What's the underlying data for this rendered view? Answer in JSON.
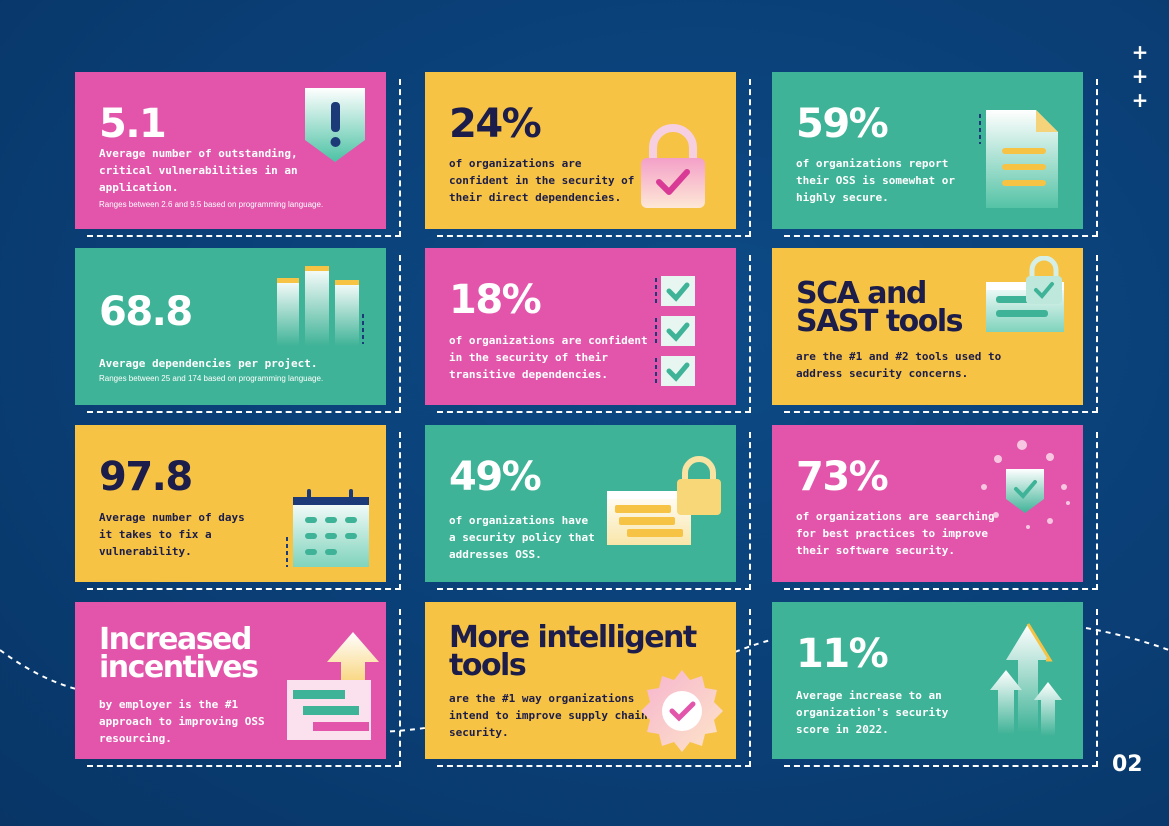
{
  "cards": [
    {
      "stat": "5.1",
      "description": "Average number of outstanding,\ncritical vulnerabilities in an\napplication.",
      "note": "Ranges between 2.6 and 9.5 based on programming language."
    },
    {
      "stat": "24%",
      "description": "of organizations are\nconfident in the security of\ntheir direct dependencies."
    },
    {
      "stat": "59%",
      "description": "of organizations report\ntheir OSS is somewhat or\nhighly secure."
    },
    {
      "stat": "68.8",
      "description": "Average dependencies per project.",
      "note": "Ranges between 25 and 174 based on programming language."
    },
    {
      "stat": "18%",
      "description": "of organizations are confident\nin the security of their\ntransitive dependencies."
    },
    {
      "stat": "SCA and\nSAST tools",
      "description": "are the #1 and #2 tools used to\naddress security concerns."
    },
    {
      "stat": "97.8",
      "description": "Average number of days\nit takes to fix a\nvulnerability."
    },
    {
      "stat": "49%",
      "description": "of organizations have\na security policy that\naddresses OSS."
    },
    {
      "stat": "73%",
      "description": "of organizations are searching\nfor best practices to improve\ntheir software security."
    },
    {
      "stat": "Increased\nincentives",
      "description": "by employer is the #1\napproach to improving OSS\nresourcing."
    },
    {
      "stat": "More intelligent\ntools",
      "description": "are the #1 way organizations\nintend to improve supply chain\nsecurity."
    },
    {
      "stat": "11%",
      "description": "Average increase to an\norganization's security\nscore in 2022."
    }
  ],
  "decor": {
    "plus_marks": [
      "+",
      "+",
      "+"
    ]
  },
  "page_number": "02",
  "colors": {
    "background": "#0a3f76",
    "pink": "#e255ab",
    "yellow": "#f6c344",
    "teal": "#3fb397",
    "navy_text": "#1c1d4a"
  }
}
